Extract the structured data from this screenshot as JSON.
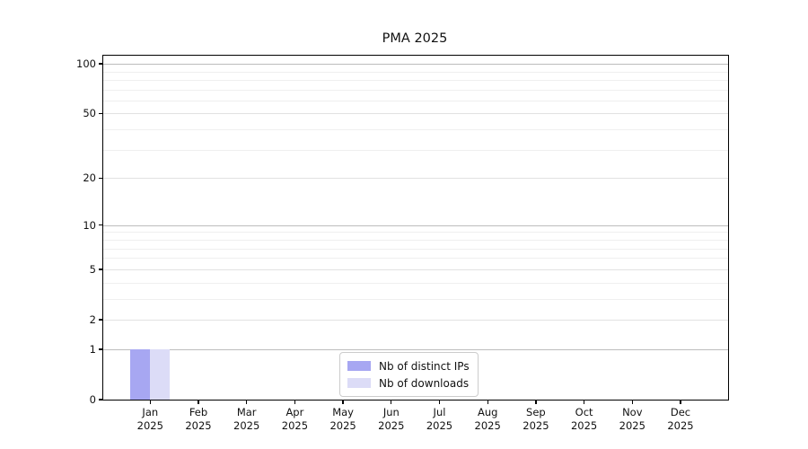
{
  "title": "PMA 2025",
  "chart_data": {
    "type": "bar",
    "title": "PMA 2025",
    "categories": [
      "Jan",
      "Feb",
      "Mar",
      "Apr",
      "May",
      "Jun",
      "Jul",
      "Aug",
      "Sep",
      "Oct",
      "Nov",
      "Dec"
    ],
    "categories_year": "2025",
    "series": [
      {
        "name": "Nb of distinct IPs",
        "color": "#a7a7f2",
        "values": [
          1,
          0,
          0,
          0,
          0,
          0,
          0,
          0,
          0,
          0,
          0,
          0
        ]
      },
      {
        "name": "Nb of downloads",
        "color": "#dcdcf7",
        "values": [
          1,
          0,
          0,
          0,
          0,
          0,
          0,
          0,
          0,
          0,
          0,
          0
        ]
      }
    ],
    "xlabel": "",
    "ylabel": "",
    "yscale": "log1p",
    "ylim": [
      0,
      112
    ],
    "y_tick_values": [
      0,
      1,
      2,
      5,
      10,
      20,
      50,
      100
    ],
    "y_tick_labels": [
      "0",
      "1",
      "2",
      "5",
      "10",
      "20",
      "50",
      "100"
    ],
    "y_decade_gridlines": [
      1,
      10,
      100
    ],
    "y_minor_gridlines": [
      3,
      4,
      6,
      7,
      8,
      9,
      30,
      40,
      60,
      70,
      80,
      90
    ],
    "grid": "horizontal",
    "legend_position": "inside-bottom-center"
  }
}
